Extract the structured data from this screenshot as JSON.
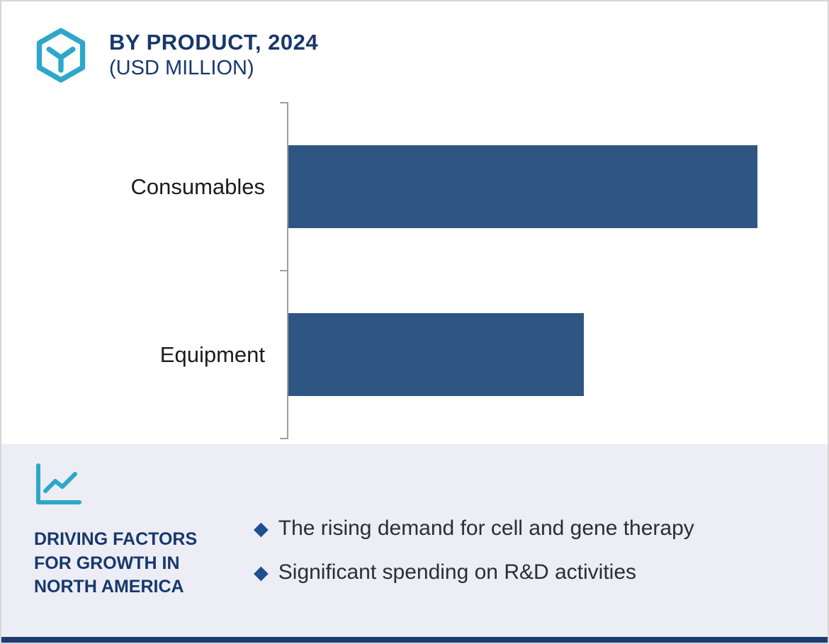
{
  "colors": {
    "bar": "#2f5682",
    "navy_text": "#17386b",
    "teal_icon": "#2ea7c9",
    "panel_bg": "#ecedf5",
    "axis": "#9e9e9e",
    "bullet_marker": "#1d4f91",
    "body_text": "#2e2e2e",
    "bottom_strip": "#1d3b6d"
  },
  "header": {
    "title": "BY PRODUCT, 2024",
    "subtitle": "(USD MILLION)"
  },
  "icons": {
    "logo": "hexagon-y-logo",
    "growth": "line-chart"
  },
  "chart_data": {
    "type": "bar",
    "orientation": "horizontal",
    "title": "BY PRODUCT, 2024 (USD MILLION)",
    "categories": [
      "Consumables",
      "Equipment"
    ],
    "values": [
      100,
      63
    ],
    "xlabel": "",
    "ylabel": "",
    "xlim": [
      0,
      115
    ],
    "grid": false,
    "legend": false,
    "bar_color": "#2f5682"
  },
  "footer": {
    "heading": "DRIVING FACTORS FOR GROWTH IN NORTH AMERICA",
    "bullet_marker": "◆",
    "bullets": [
      "The rising demand for cell and gene therapy",
      "Significant spending on R&D activities"
    ]
  }
}
